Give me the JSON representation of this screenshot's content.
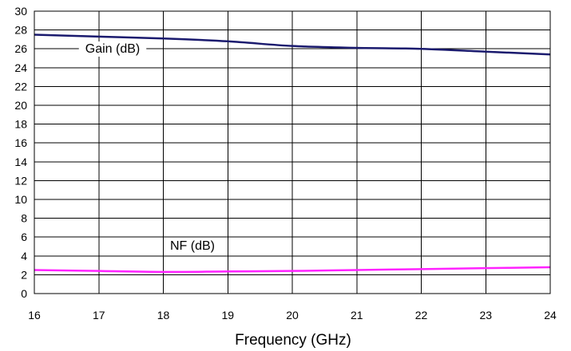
{
  "chart_data": {
    "type": "line",
    "title": "",
    "xlabel": "Frequency (GHz)",
    "ylabel": "",
    "xlim": [
      16,
      24
    ],
    "ylim": [
      0,
      30
    ],
    "xticks": [
      16,
      17,
      18,
      19,
      20,
      21,
      22,
      23,
      24
    ],
    "yticks": [
      0,
      2,
      4,
      6,
      8,
      10,
      12,
      14,
      16,
      18,
      20,
      22,
      24,
      26,
      28,
      30
    ],
    "grid": true,
    "series": [
      {
        "name": "Gain (dB)",
        "color": "#1a1a6e",
        "x": [
          16,
          17,
          18,
          19,
          20,
          21,
          22,
          23,
          24
        ],
        "y": [
          27.5,
          27.3,
          27.1,
          26.8,
          26.3,
          26.1,
          26.0,
          25.7,
          25.4
        ]
      },
      {
        "name": "NF (dB)",
        "color": "#ff22ff",
        "x": [
          16,
          17,
          18,
          19,
          20,
          21,
          22,
          23,
          24
        ],
        "y": [
          2.5,
          2.4,
          2.3,
          2.35,
          2.4,
          2.5,
          2.6,
          2.7,
          2.8
        ]
      }
    ]
  }
}
